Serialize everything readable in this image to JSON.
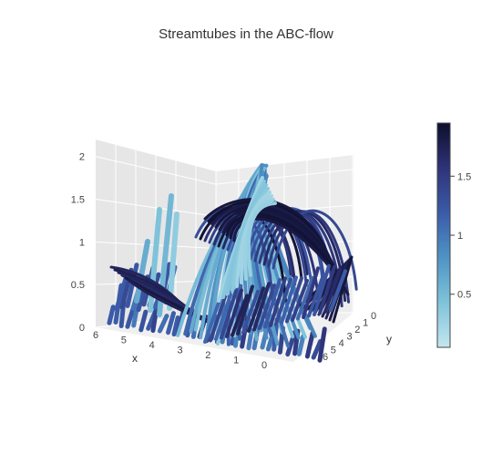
{
  "chart_data": {
    "type": "streamtube",
    "title": "Streamtubes in the ABC-flow",
    "axes": {
      "x": {
        "label": "x",
        "range": [
          0,
          6
        ],
        "ticks": [
          "6",
          "5",
          "4",
          "3",
          "2",
          "1",
          "0"
        ]
      },
      "y": {
        "label": "y",
        "range": [
          0,
          6
        ],
        "ticks": [
          "0",
          "1",
          "2",
          "3",
          "4",
          "5",
          "6"
        ]
      },
      "z": {
        "label": "",
        "range": [
          0,
          2.2
        ],
        "ticks": [
          "0",
          "0.5",
          "1",
          "1.5",
          "2"
        ]
      }
    },
    "colorbar": {
      "range": [
        0.05,
        1.95
      ],
      "ticks": [
        "0.5",
        "1",
        "1.5"
      ],
      "colorscale": [
        "#c3e6ef",
        "#7fc3da",
        "#4f93c5",
        "#3b5ba8",
        "#2e3378",
        "#0e0e2c"
      ]
    }
  }
}
